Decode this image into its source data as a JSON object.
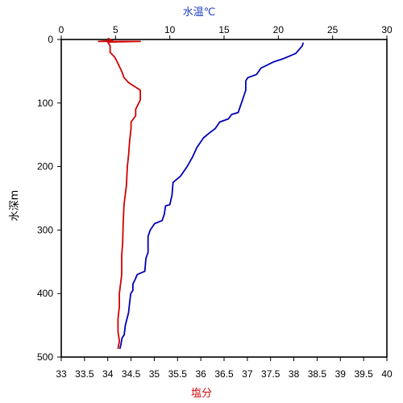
{
  "chart_data": {
    "type": "line",
    "temperature_axis": {
      "label": "水温℃",
      "range": [
        0,
        30
      ],
      "ticks": [
        0,
        5,
        10,
        15,
        20,
        25,
        30
      ],
      "position": "top",
      "color": "#1f3fbf"
    },
    "salinity_axis": {
      "label": "塩分",
      "range": [
        33,
        40
      ],
      "ticks": [
        33,
        33.5,
        34,
        34.5,
        35,
        35.5,
        36,
        36.5,
        37,
        37.5,
        38,
        38.5,
        39,
        39.5,
        40
      ],
      "position": "bottom",
      "color": "#d01010"
    },
    "depth_axis": {
      "label": "水深m",
      "range": [
        0,
        500
      ],
      "ticks": [
        0,
        100,
        200,
        300,
        400,
        500
      ],
      "inverted": true
    },
    "grid": false,
    "series": [
      {
        "axis": "temperature",
        "color": "#0000b4",
        "points": [
          [
            22.3,
            5
          ],
          [
            22.2,
            10
          ],
          [
            21.6,
            22
          ],
          [
            20.5,
            30
          ],
          [
            19.6,
            35
          ],
          [
            18.4,
            45
          ],
          [
            18.0,
            55
          ],
          [
            17.2,
            60
          ],
          [
            17.0,
            65
          ],
          [
            17.0,
            80
          ],
          [
            16.7,
            95
          ],
          [
            16.5,
            105
          ],
          [
            16.3,
            115
          ],
          [
            15.7,
            118
          ],
          [
            15.4,
            125
          ],
          [
            14.6,
            130
          ],
          [
            14.2,
            140
          ],
          [
            13.6,
            148
          ],
          [
            13.1,
            155
          ],
          [
            12.5,
            170
          ],
          [
            12.1,
            185
          ],
          [
            11.6,
            200
          ],
          [
            11.0,
            215
          ],
          [
            10.3,
            225
          ],
          [
            10.2,
            245
          ],
          [
            10.0,
            260
          ],
          [
            9.6,
            262
          ],
          [
            9.5,
            275
          ],
          [
            9.3,
            285
          ],
          [
            8.6,
            290
          ],
          [
            8.2,
            300
          ],
          [
            8.0,
            310
          ],
          [
            8.0,
            335
          ],
          [
            7.8,
            345
          ],
          [
            7.7,
            365
          ],
          [
            7.0,
            370
          ],
          [
            6.8,
            378
          ],
          [
            6.6,
            385
          ],
          [
            6.6,
            395
          ],
          [
            6.4,
            400
          ],
          [
            6.3,
            415
          ],
          [
            6.2,
            430
          ],
          [
            5.9,
            450
          ],
          [
            5.8,
            465
          ],
          [
            5.6,
            470
          ],
          [
            5.5,
            480
          ],
          [
            5.4,
            487
          ]
        ]
      },
      {
        "axis": "salinity",
        "color": "#d00000",
        "points": [
          [
            34.0,
            -2
          ],
          [
            34.1,
            2
          ],
          [
            33.8,
            3
          ],
          [
            34.7,
            3
          ],
          [
            34.0,
            4
          ],
          [
            34.05,
            10
          ],
          [
            34.05,
            20
          ],
          [
            34.15,
            28
          ],
          [
            34.2,
            35
          ],
          [
            34.3,
            50
          ],
          [
            34.35,
            60
          ],
          [
            34.45,
            68
          ],
          [
            34.6,
            75
          ],
          [
            34.7,
            80
          ],
          [
            34.7,
            95
          ],
          [
            34.6,
            110
          ],
          [
            34.6,
            120
          ],
          [
            34.5,
            130
          ],
          [
            34.5,
            140
          ],
          [
            34.47,
            160
          ],
          [
            34.45,
            180
          ],
          [
            34.42,
            200
          ],
          [
            34.4,
            230
          ],
          [
            34.35,
            260
          ],
          [
            34.33,
            290
          ],
          [
            34.32,
            320
          ],
          [
            34.3,
            340
          ],
          [
            34.3,
            370
          ],
          [
            34.25,
            400
          ],
          [
            34.25,
            420
          ],
          [
            34.22,
            440
          ],
          [
            34.22,
            460
          ],
          [
            34.25,
            475
          ],
          [
            34.22,
            487
          ]
        ]
      }
    ]
  }
}
